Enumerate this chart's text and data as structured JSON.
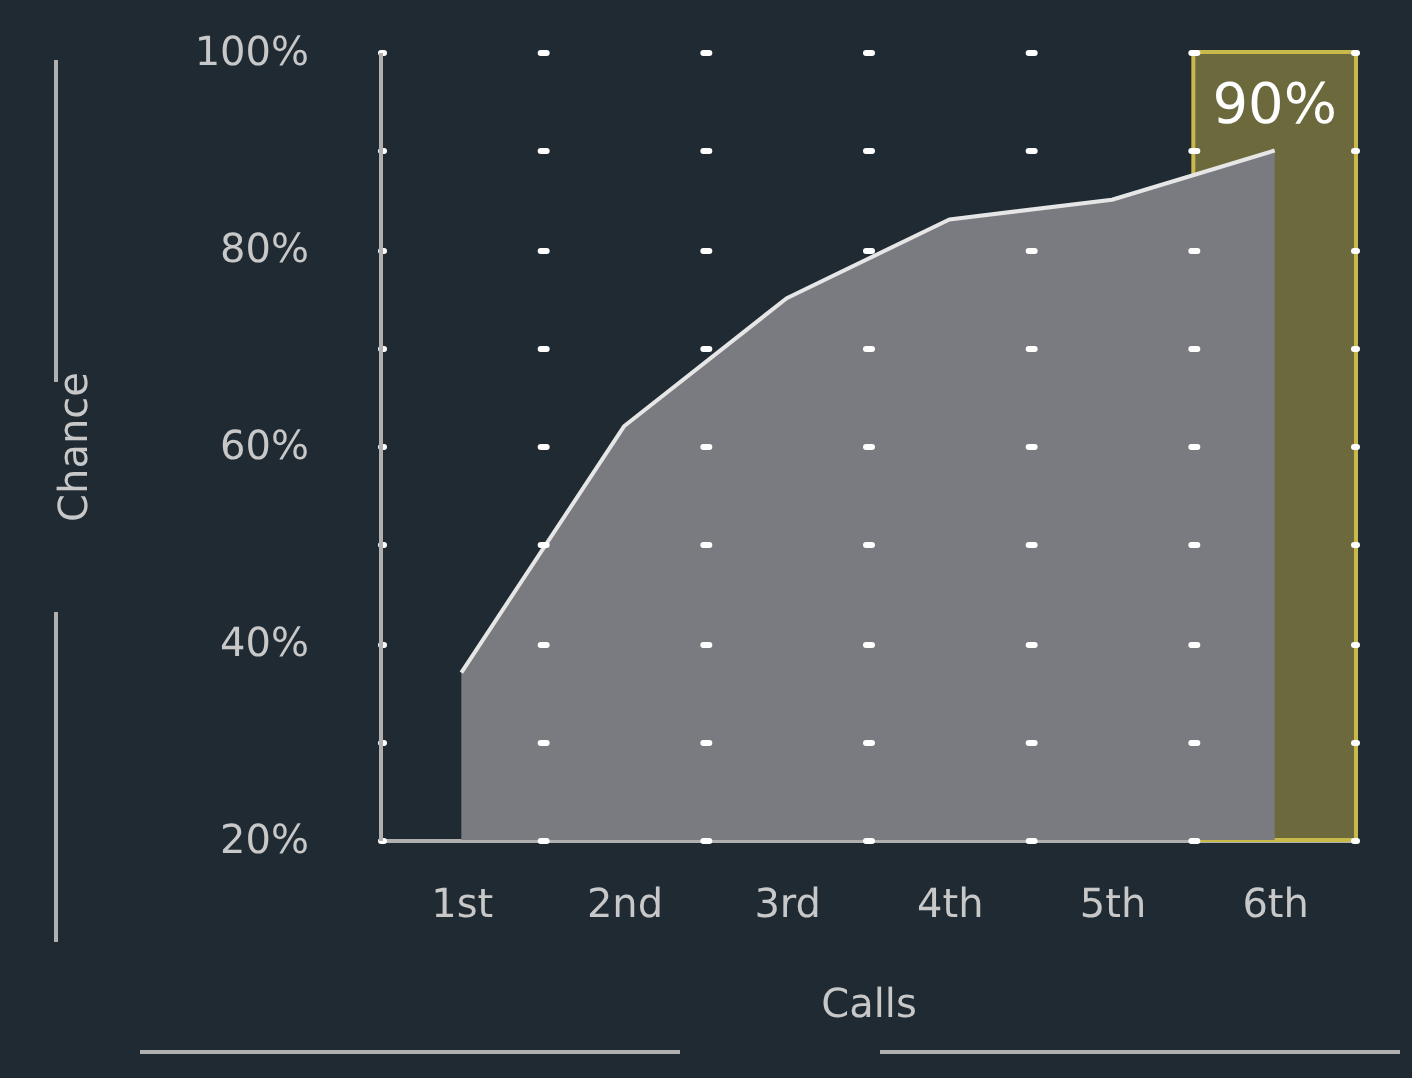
{
  "chart_data": {
    "type": "area",
    "categories": [
      "1st",
      "2nd",
      "3rd",
      "4th",
      "5th",
      "6th"
    ],
    "series": [
      {
        "color": "#7a7b80",
        "values": [
          37,
          62,
          75,
          83,
          85,
          90
        ]
      }
    ],
    "xlabel": "Calls",
    "ylabel": "Chance",
    "ylim": [
      20,
      100
    ],
    "yticks": [
      {
        "value": 20,
        "label": "20%"
      },
      {
        "value": 30,
        "label": null
      },
      {
        "value": 40,
        "label": "40%"
      },
      {
        "value": 50,
        "label": null
      },
      {
        "value": 60,
        "label": "60%"
      },
      {
        "value": 70,
        "label": null
      },
      {
        "value": 80,
        "label": "80%"
      },
      {
        "value": 90,
        "label": null
      },
      {
        "value": 100,
        "label": "100%"
      }
    ],
    "grid": true,
    "bands": [
      {
        "axis": "x",
        "from": "6th",
        "to": "6th",
        "color": "#c9b94a"
      }
    ],
    "annotations": [
      {
        "text": "90%",
        "x": "6th",
        "y": 90
      }
    ]
  }
}
